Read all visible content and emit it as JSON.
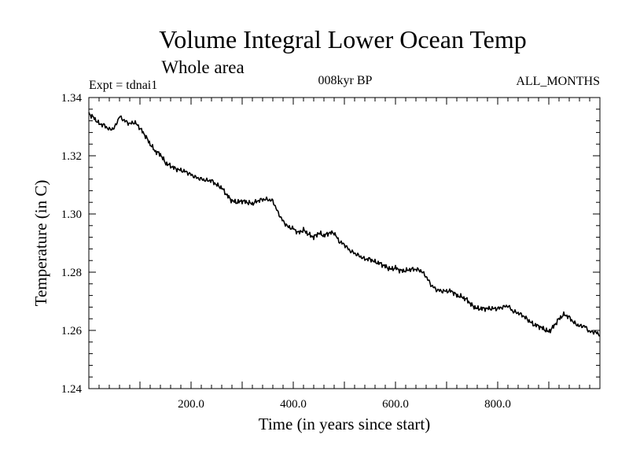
{
  "chart_data": {
    "type": "line",
    "title": "Volume Integral Lower Ocean Temp",
    "subtitle": "Whole area",
    "experiment_label": "Expt = tdnai1",
    "period_label": "008kyr BP",
    "months_label": "ALL_MONTHS",
    "xlabel": "Time (in years since start)",
    "ylabel": "Temperature (in C)",
    "xlim": [
      0,
      1000
    ],
    "ylim": [
      1.24,
      1.34
    ],
    "x_ticks": [
      200,
      400,
      600,
      800
    ],
    "x_tick_labels": [
      "200.0",
      "400.0",
      "600.0",
      "800.0"
    ],
    "y_ticks": [
      1.24,
      1.26,
      1.28,
      1.3,
      1.32,
      1.34
    ],
    "y_tick_labels": [
      "1.24",
      "1.26",
      "1.28",
      "1.30",
      "1.32",
      "1.34"
    ],
    "series": [
      {
        "name": "Volume integral lower ocean temperature",
        "color": "#000000",
        "x": [
          0,
          10,
          20,
          30,
          40,
          50,
          60,
          70,
          80,
          90,
          100,
          110,
          120,
          130,
          140,
          150,
          160,
          170,
          180,
          190,
          200,
          210,
          220,
          230,
          240,
          250,
          260,
          270,
          280,
          290,
          300,
          310,
          320,
          330,
          340,
          350,
          360,
          370,
          380,
          390,
          400,
          410,
          420,
          430,
          440,
          450,
          460,
          470,
          480,
          490,
          500,
          510,
          520,
          530,
          540,
          550,
          560,
          570,
          580,
          590,
          600,
          610,
          620,
          630,
          640,
          650,
          660,
          670,
          680,
          690,
          700,
          710,
          720,
          730,
          740,
          750,
          760,
          770,
          780,
          790,
          800,
          810,
          820,
          830,
          840,
          850,
          860,
          870,
          880,
          890,
          900,
          910,
          920,
          930,
          940,
          950,
          960,
          970,
          980,
          990,
          1000
        ],
        "values": [
          1.3345,
          1.333,
          1.331,
          1.3305,
          1.329,
          1.3295,
          1.3335,
          1.332,
          1.331,
          1.3315,
          1.3295,
          1.327,
          1.324,
          1.3215,
          1.3205,
          1.3175,
          1.3165,
          1.3155,
          1.315,
          1.3145,
          1.3135,
          1.3125,
          1.312,
          1.3115,
          1.3115,
          1.31,
          1.309,
          1.3065,
          1.3045,
          1.304,
          1.3045,
          1.304,
          1.3035,
          1.3045,
          1.305,
          1.305,
          1.3045,
          1.3005,
          1.2975,
          1.2955,
          1.295,
          1.2935,
          1.2945,
          1.293,
          1.292,
          1.2935,
          1.2925,
          1.2935,
          1.2935,
          1.2905,
          1.2895,
          1.2875,
          1.2865,
          1.2855,
          1.2845,
          1.2845,
          1.2835,
          1.283,
          1.282,
          1.281,
          1.2815,
          1.2805,
          1.2805,
          1.281,
          1.281,
          1.2805,
          1.2785,
          1.2755,
          1.274,
          1.2735,
          1.2735,
          1.2735,
          1.272,
          1.2715,
          1.2705,
          1.2685,
          1.2675,
          1.2675,
          1.2675,
          1.2675,
          1.2675,
          1.268,
          1.2685,
          1.2665,
          1.266,
          1.265,
          1.2635,
          1.262,
          1.2615,
          1.2605,
          1.2595,
          1.2615,
          1.264,
          1.2655,
          1.2645,
          1.2625,
          1.2615,
          1.2615,
          1.2595,
          1.2595,
          1.2585
        ]
      }
    ]
  }
}
